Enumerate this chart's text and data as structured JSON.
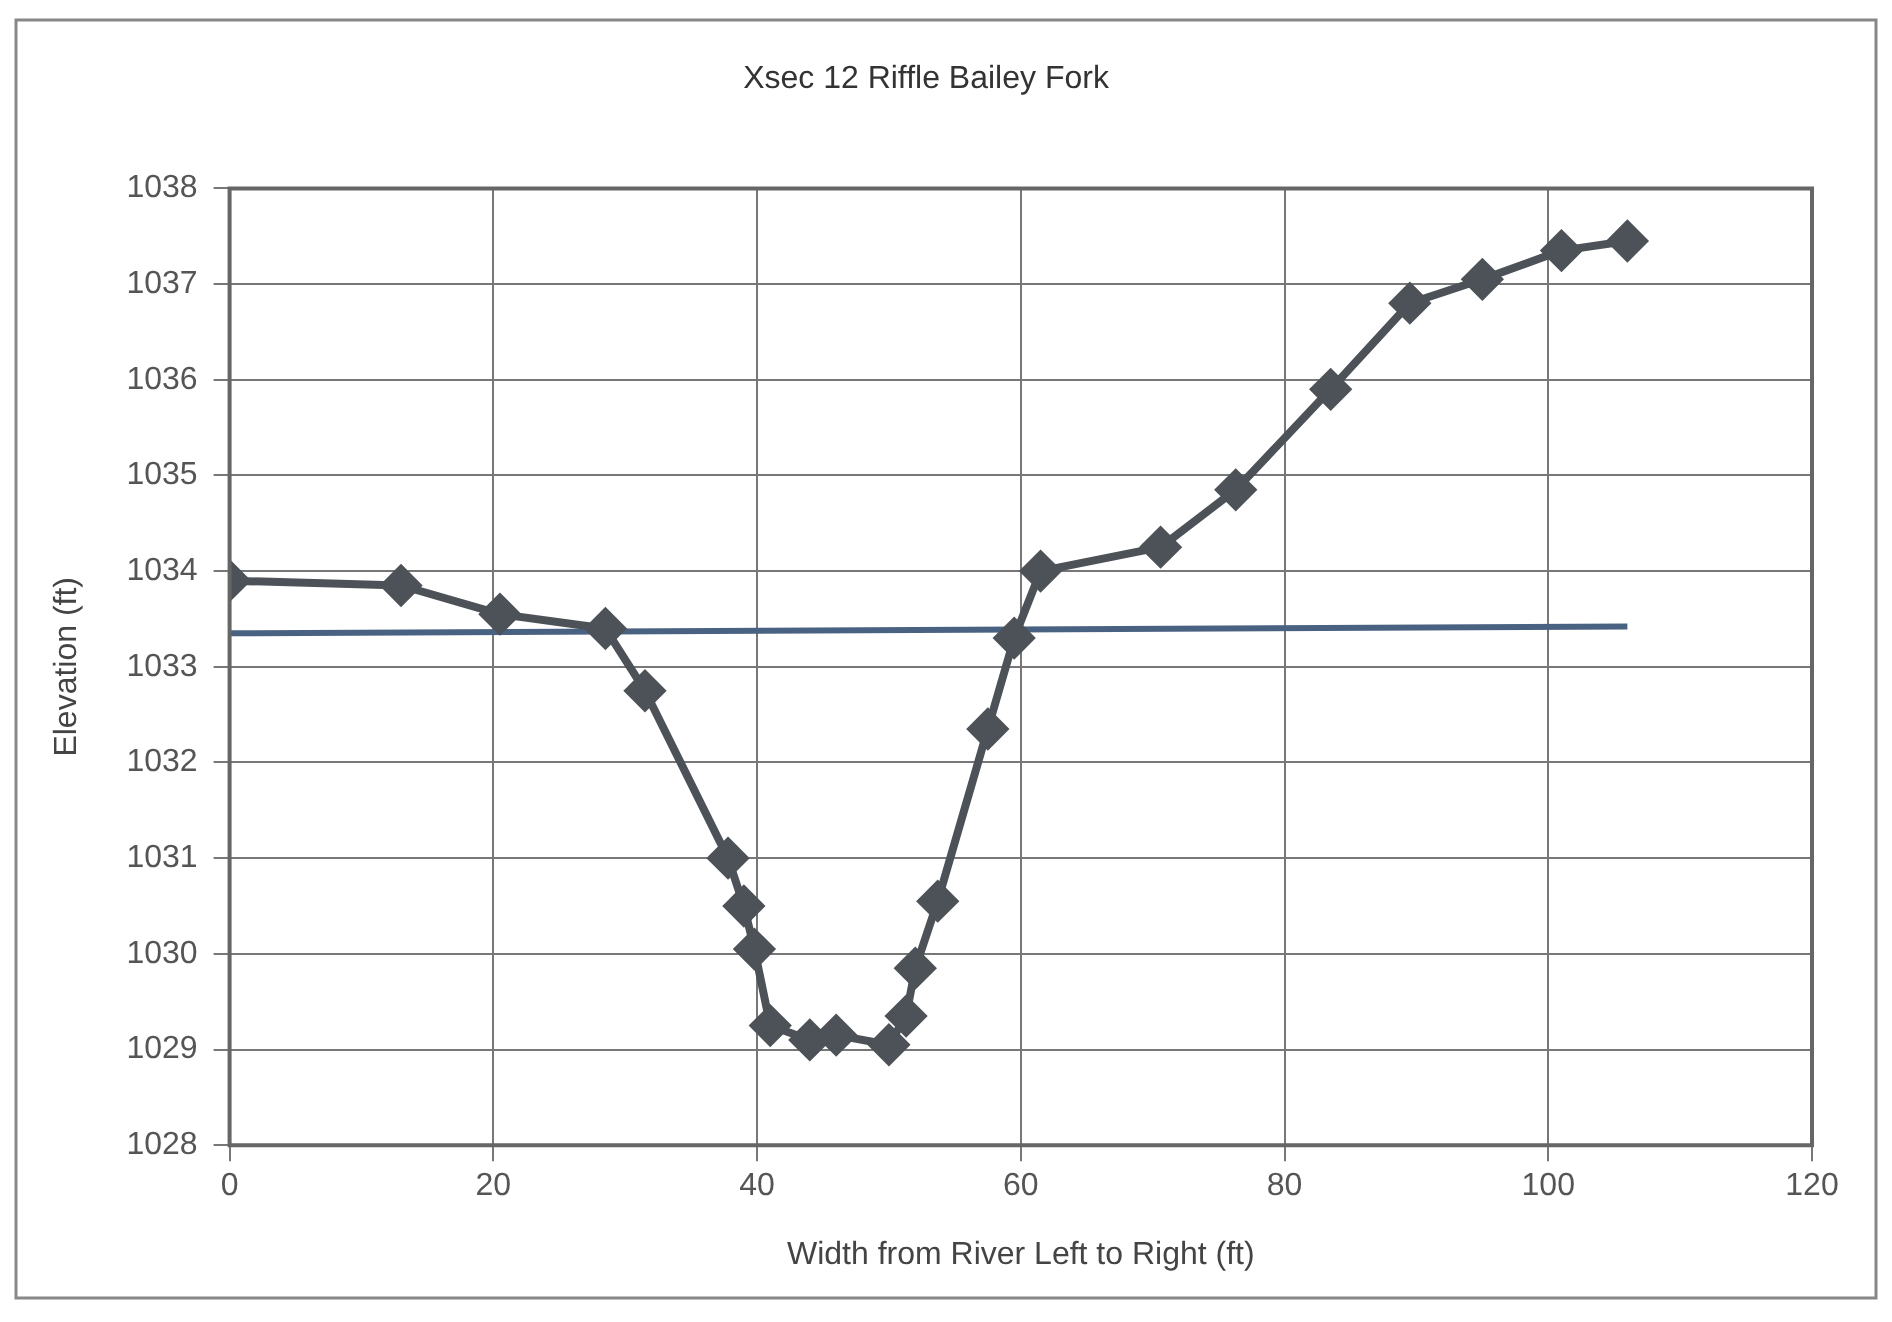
{
  "chart_data": {
    "type": "line",
    "title": "Xsec 12 Riffle Bailey Fork",
    "xlabel": "Width from River Left to Right (ft)",
    "ylabel": "Elevation (ft)",
    "xlim": [
      0,
      120
    ],
    "xticks": [
      0,
      20,
      40,
      60,
      80,
      100,
      120
    ],
    "ylim": [
      1028,
      1038
    ],
    "yticks": [
      1028,
      1029,
      1030,
      1031,
      1032,
      1033,
      1034,
      1035,
      1036,
      1037,
      1038
    ],
    "grid": true,
    "legend": false,
    "series": [
      {
        "color": "#4d5258",
        "marker": "diamond",
        "x": [
          0,
          13,
          20.5,
          28.5,
          31.5,
          37.8,
          39,
          39.8,
          41,
          44,
          46,
          50,
          51.3,
          52,
          53.7,
          57.5,
          59.5,
          61.5,
          70.6,
          76.3,
          83.5,
          89.5,
          95,
          101,
          106
        ],
        "values": [
          1033.9,
          1033.85,
          1033.55,
          1033.4,
          1032.75,
          1031,
          1030.5,
          1030.05,
          1029.25,
          1029.1,
          1029.15,
          1029.05,
          1029.35,
          1029.85,
          1030.55,
          1032.35,
          1033.3,
          1034,
          1034.25,
          1034.85,
          1035.9,
          1036.8,
          1037.05,
          1037.35,
          1037.45
        ]
      },
      {
        "color": "#4a6282",
        "marker": "none",
        "x": [
          0,
          106
        ],
        "values": [
          1033.35,
          1033.42
        ]
      }
    ]
  }
}
